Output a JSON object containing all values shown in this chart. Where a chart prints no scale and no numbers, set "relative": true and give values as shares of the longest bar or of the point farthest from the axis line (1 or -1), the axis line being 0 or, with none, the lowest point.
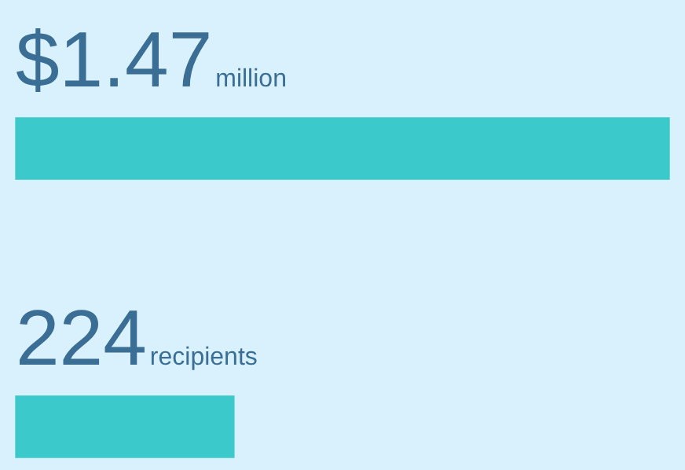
{
  "chart_data": {
    "type": "bar",
    "orientation": "horizontal",
    "relative": true,
    "categories": [
      null,
      null
    ],
    "values": [
      1,
      0.334
    ],
    "color": "#3cc9cb",
    "annotations": [
      "$1.47",
      "million",
      "224",
      "recipients"
    ],
    "legend": false,
    "tick_labels": false
  }
}
